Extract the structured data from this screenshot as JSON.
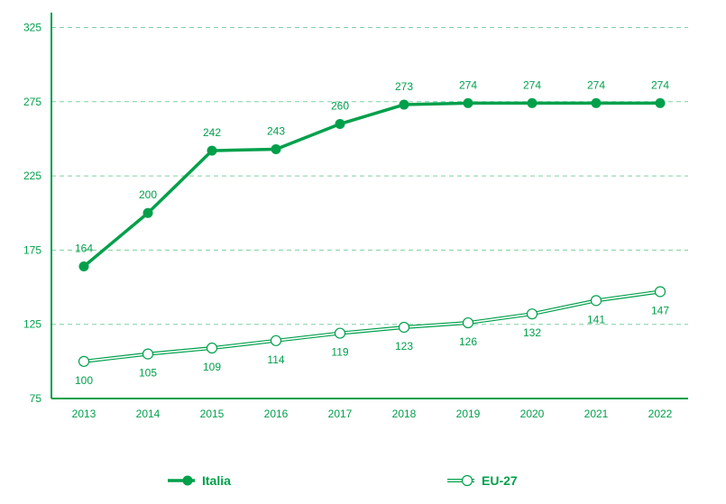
{
  "chart_data": {
    "type": "line",
    "title": "",
    "xlabel": "",
    "ylabel": "",
    "categories": [
      "2013",
      "2014",
      "2015",
      "2016",
      "2017",
      "2018",
      "2019",
      "2020",
      "2021",
      "2022"
    ],
    "ylim": [
      75,
      335
    ],
    "yticks": [
      75,
      125,
      175,
      225,
      275,
      325
    ],
    "grid": true,
    "legend_position": "bottom",
    "series": [
      {
        "name": "Italia",
        "values": [
          164,
          200,
          242,
          243,
          260,
          273,
          274,
          274,
          274,
          274
        ],
        "marker": "filled",
        "label_position": "above"
      },
      {
        "name": "EU-27",
        "values": [
          100,
          105,
          109,
          114,
          119,
          123,
          126,
          132,
          141,
          147
        ],
        "marker": "hollow",
        "label_position": "below"
      }
    ]
  },
  "colors": {
    "green": "#00a04b",
    "axis": "#00a04b",
    "grid": "#7fd1a0",
    "background": "#ffffff"
  }
}
